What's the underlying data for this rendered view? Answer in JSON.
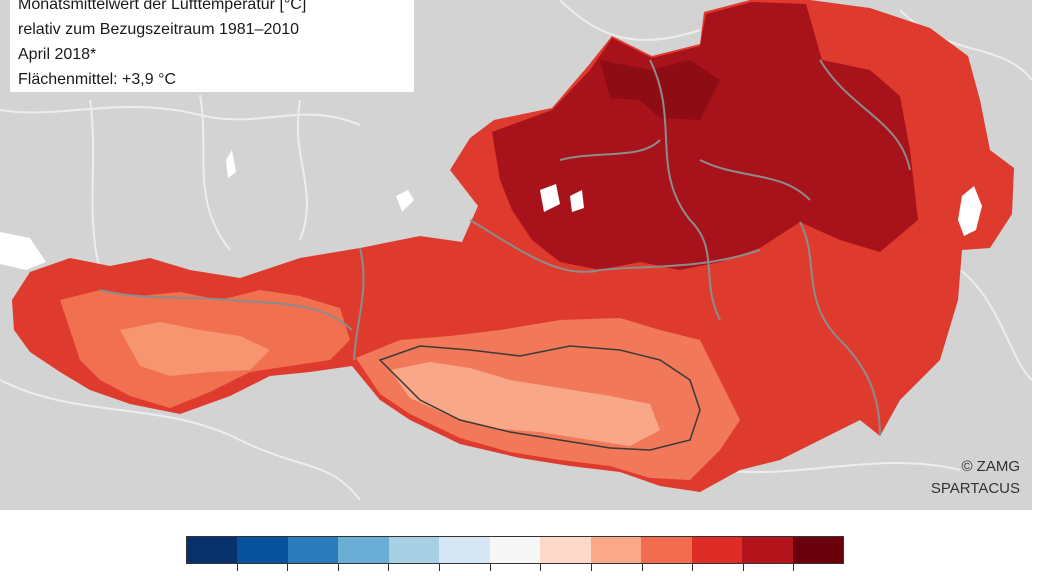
{
  "legend": {
    "line1": "Monatsmittelwert der Lufttemperatur [°C]",
    "line2": "relativ zum Bezugszeitraum 1981–2010",
    "line3": "April 2018*",
    "line4": "Flächenmittel: +3,9 °C"
  },
  "copyright": {
    "line1": "© ZAMG",
    "line2": "SPARTACUS"
  },
  "colors": {
    "background_terrain": "#d3d3d3",
    "lake": "#ffffff",
    "border_gray": "#8c8c8c",
    "border_dark": "#3a3a3a",
    "scale": [
      "#08306b",
      "#08519c",
      "#2b7bba",
      "#6aaed6",
      "#a9cfe5",
      "#d6e6f4",
      "#f7f7f7",
      "#fcd9cb",
      "#f9a98a",
      "#f26c4f",
      "#df2c26",
      "#b3141b",
      "#6b000d"
    ]
  },
  "colorbar": {
    "classes": 13,
    "ticks": 12
  }
}
